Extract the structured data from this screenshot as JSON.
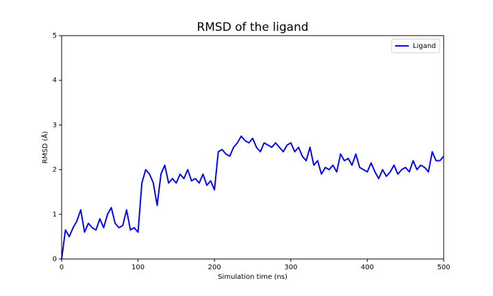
{
  "chart_data": {
    "type": "line",
    "title": "RMSD of the ligand",
    "x_label": "Simulation time (ns)",
    "y_label": "RMSD (Å)",
    "x": [
      0,
      5,
      10,
      15,
      20,
      25,
      30,
      35,
      40,
      45,
      50,
      55,
      60,
      65,
      70,
      75,
      80,
      85,
      90,
      95,
      100,
      105,
      110,
      115,
      120,
      125,
      130,
      135,
      140,
      145,
      150,
      155,
      160,
      165,
      170,
      175,
      180,
      185,
      190,
      195,
      200,
      205,
      210,
      215,
      220,
      225,
      230,
      235,
      240,
      245,
      250,
      255,
      260,
      265,
      270,
      275,
      280,
      285,
      290,
      295,
      300,
      305,
      310,
      315,
      320,
      325,
      330,
      335,
      340,
      345,
      350,
      355,
      360,
      365,
      370,
      375,
      380,
      385,
      390,
      395,
      400,
      405,
      410,
      415,
      420,
      425,
      430,
      435,
      440,
      445,
      450,
      455,
      460,
      465,
      470,
      475,
      480,
      485,
      490,
      495,
      500
    ],
    "series": [
      {
        "name": "Ligand",
        "color": "#0000ff",
        "values": [
          0.0,
          0.65,
          0.5,
          0.7,
          0.85,
          1.1,
          0.6,
          0.8,
          0.7,
          0.65,
          0.9,
          0.7,
          1.0,
          1.15,
          0.8,
          0.7,
          0.75,
          1.1,
          0.65,
          0.7,
          0.6,
          1.7,
          2.0,
          1.9,
          1.7,
          1.2,
          1.9,
          2.1,
          1.7,
          1.8,
          1.7,
          1.9,
          1.8,
          2.0,
          1.75,
          1.8,
          1.7,
          1.9,
          1.65,
          1.75,
          1.55,
          2.4,
          2.45,
          2.35,
          2.3,
          2.5,
          2.6,
          2.75,
          2.65,
          2.6,
          2.7,
          2.5,
          2.4,
          2.6,
          2.55,
          2.5,
          2.6,
          2.5,
          2.4,
          2.55,
          2.6,
          2.4,
          2.5,
          2.3,
          2.2,
          2.5,
          2.1,
          2.2,
          1.9,
          2.05,
          2.0,
          2.1,
          1.95,
          2.35,
          2.2,
          2.25,
          2.1,
          2.35,
          2.05,
          2.0,
          1.95,
          2.15,
          1.95,
          1.8,
          2.0,
          1.85,
          1.95,
          2.1,
          1.9,
          2.0,
          2.05,
          1.95,
          2.2,
          2.0,
          2.1,
          2.05,
          1.95,
          2.4,
          2.2,
          2.2,
          2.3
        ]
      }
    ],
    "xlim": [
      0,
      500
    ],
    "xticks": [
      0,
      100,
      200,
      300,
      400,
      500
    ],
    "ylim": [
      0,
      5
    ],
    "yticks": [
      0,
      1,
      2,
      3,
      4,
      5
    ],
    "grid": false,
    "legend": "upper right"
  }
}
